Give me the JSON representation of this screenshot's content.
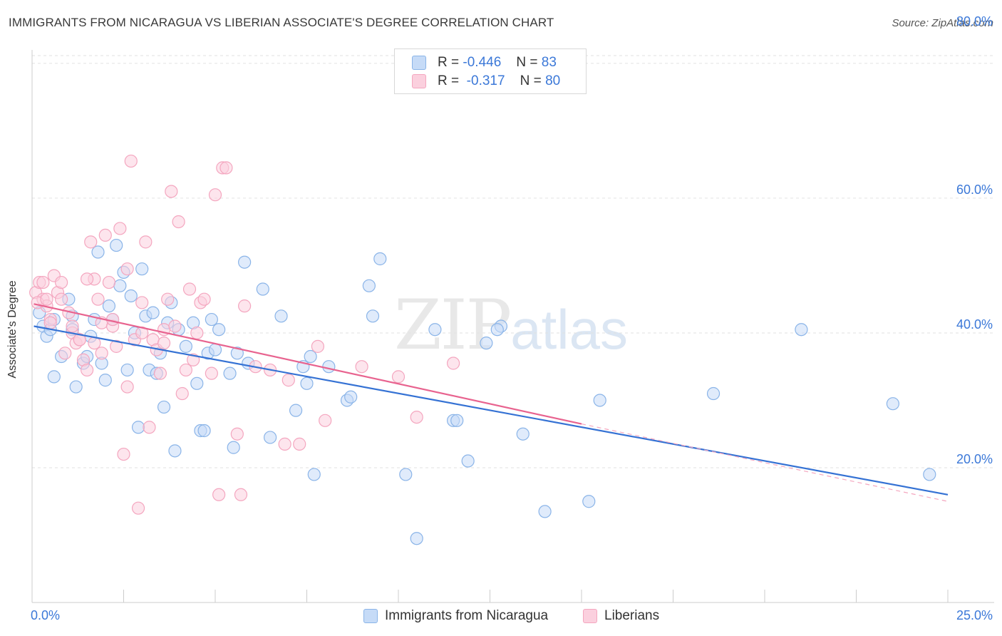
{
  "title": "IMMIGRANTS FROM NICARAGUA VS LIBERIAN ASSOCIATE'S DEGREE CORRELATION CHART",
  "source": "Source: ZipAtlas.com",
  "watermark": {
    "zip": "ZIP",
    "atlas": "atlas"
  },
  "legend": {
    "rows": [
      {
        "r_label": "R =",
        "r_value": "-0.446",
        "n_label": "N =",
        "n_value": "83"
      },
      {
        "r_label": "R =",
        "r_value": "-0.317",
        "n_label": "N =",
        "n_value": "80"
      }
    ]
  },
  "chart_data": {
    "type": "scatter",
    "title": "IMMIGRANTS FROM NICARAGUA VS LIBERIAN ASSOCIATE'S DEGREE CORRELATION CHART",
    "xlabel": "",
    "ylabel": "Associate's Degree",
    "xlim": [
      0,
      25
    ],
    "ylim": [
      0,
      82
    ],
    "x_tick_labels": [
      "0.0%",
      "25.0%"
    ],
    "y_ticks": [
      20,
      40,
      60,
      80
    ],
    "y_tick_labels": [
      "20.0%",
      "40.0%",
      "60.0%",
      "80.0%"
    ],
    "grid": true,
    "legend_position": "top-center",
    "series": [
      {
        "name": "Immigrants from Nicaragua",
        "color": "#8ab4e8",
        "line_color": "#3572d4",
        "R": -0.446,
        "N": 83,
        "trend": {
          "x0": 0.05,
          "y0": 41.0,
          "x1": 25.0,
          "y1": 16.0
        },
        "points": [
          [
            0.2,
            43.0
          ],
          [
            0.3,
            41.0
          ],
          [
            0.4,
            39.5
          ],
          [
            0.5,
            40.5
          ],
          [
            0.6,
            42.0
          ],
          [
            0.6,
            33.5
          ],
          [
            0.8,
            36.5
          ],
          [
            1.0,
            45.0
          ],
          [
            1.1,
            40.5
          ],
          [
            1.1,
            42.5
          ],
          [
            1.2,
            32.0
          ],
          [
            1.4,
            35.5
          ],
          [
            1.5,
            36.5
          ],
          [
            1.6,
            39.5
          ],
          [
            1.7,
            42.0
          ],
          [
            1.8,
            52.0
          ],
          [
            1.9,
            35.5
          ],
          [
            2.0,
            33.0
          ],
          [
            2.1,
            44.0
          ],
          [
            2.2,
            42.0
          ],
          [
            2.3,
            53.0
          ],
          [
            2.4,
            47.0
          ],
          [
            2.5,
            49.0
          ],
          [
            2.6,
            34.5
          ],
          [
            2.7,
            45.5
          ],
          [
            2.8,
            40.0
          ],
          [
            2.9,
            26.0
          ],
          [
            3.0,
            49.5
          ],
          [
            3.1,
            42.5
          ],
          [
            3.2,
            34.5
          ],
          [
            3.3,
            43.0
          ],
          [
            3.4,
            34.0
          ],
          [
            3.5,
            37.0
          ],
          [
            3.6,
            29.0
          ],
          [
            3.7,
            41.5
          ],
          [
            3.8,
            44.5
          ],
          [
            3.9,
            22.5
          ],
          [
            4.0,
            40.5
          ],
          [
            4.2,
            38.0
          ],
          [
            4.4,
            41.5
          ],
          [
            4.5,
            32.5
          ],
          [
            4.6,
            25.5
          ],
          [
            4.7,
            25.5
          ],
          [
            4.8,
            37.0
          ],
          [
            4.9,
            42.0
          ],
          [
            5.0,
            37.5
          ],
          [
            5.1,
            40.5
          ],
          [
            5.4,
            34.0
          ],
          [
            5.5,
            23.0
          ],
          [
            5.6,
            37.0
          ],
          [
            5.8,
            50.5
          ],
          [
            5.9,
            35.5
          ],
          [
            6.3,
            46.5
          ],
          [
            6.5,
            24.5
          ],
          [
            6.8,
            42.5
          ],
          [
            7.2,
            28.5
          ],
          [
            7.4,
            35.0
          ],
          [
            7.5,
            32.5
          ],
          [
            7.6,
            36.5
          ],
          [
            7.7,
            19.0
          ],
          [
            8.1,
            35.0
          ],
          [
            8.6,
            30.0
          ],
          [
            8.7,
            30.5
          ],
          [
            9.2,
            47.0
          ],
          [
            9.3,
            42.5
          ],
          [
            9.5,
            51.0
          ],
          [
            10.2,
            19.0
          ],
          [
            10.5,
            9.5
          ],
          [
            11.0,
            40.5
          ],
          [
            11.5,
            27.0
          ],
          [
            11.6,
            27.0
          ],
          [
            11.9,
            21.0
          ],
          [
            12.4,
            38.5
          ],
          [
            12.8,
            41.0
          ],
          [
            13.4,
            25.0
          ],
          [
            14.0,
            13.5
          ],
          [
            15.2,
            15.0
          ],
          [
            15.5,
            30.0
          ],
          [
            18.6,
            31.0
          ],
          [
            21.0,
            40.5
          ],
          [
            23.5,
            29.5
          ],
          [
            24.5,
            19.0
          ],
          [
            12.7,
            40.5
          ]
        ]
      },
      {
        "name": "Liberians",
        "color": "#f4a6bf",
        "line_color": "#e8638f",
        "R": -0.317,
        "N": 80,
        "trend": {
          "x0": 0.05,
          "y0": 44.3,
          "x1": 15.0,
          "y1": 26.5
        },
        "dashed_extension": {
          "x0": 15.0,
          "y0": 26.5,
          "x1": 25.0,
          "y1": 15.0
        },
        "points": [
          [
            0.1,
            46.0
          ],
          [
            0.2,
            47.5
          ],
          [
            0.3,
            45.0
          ],
          [
            0.4,
            44.0
          ],
          [
            0.5,
            42.0
          ],
          [
            0.6,
            48.5
          ],
          [
            0.7,
            46.0
          ],
          [
            0.8,
            45.0
          ],
          [
            0.9,
            37.0
          ],
          [
            1.0,
            43.0
          ],
          [
            1.1,
            40.0
          ],
          [
            1.2,
            38.5
          ],
          [
            1.3,
            39.0
          ],
          [
            1.4,
            36.0
          ],
          [
            1.5,
            34.5
          ],
          [
            1.6,
            53.5
          ],
          [
            1.7,
            48.0
          ],
          [
            1.8,
            45.0
          ],
          [
            1.9,
            41.5
          ],
          [
            2.0,
            54.5
          ],
          [
            2.1,
            47.5
          ],
          [
            2.2,
            41.0
          ],
          [
            2.3,
            38.0
          ],
          [
            2.4,
            55.5
          ],
          [
            2.5,
            22.0
          ],
          [
            2.6,
            32.0
          ],
          [
            2.7,
            65.5
          ],
          [
            2.8,
            39.0
          ],
          [
            2.9,
            14.0
          ],
          [
            3.0,
            44.5
          ],
          [
            3.1,
            53.5
          ],
          [
            3.2,
            26.0
          ],
          [
            3.3,
            39.0
          ],
          [
            3.4,
            37.5
          ],
          [
            3.5,
            34.0
          ],
          [
            3.6,
            40.5
          ],
          [
            3.7,
            45.0
          ],
          [
            3.8,
            61.0
          ],
          [
            3.9,
            41.0
          ],
          [
            4.0,
            56.5
          ],
          [
            4.1,
            31.0
          ],
          [
            4.2,
            34.5
          ],
          [
            4.3,
            46.5
          ],
          [
            4.4,
            36.0
          ],
          [
            4.5,
            40.0
          ],
          [
            4.6,
            44.5
          ],
          [
            4.7,
            45.0
          ],
          [
            4.9,
            34.0
          ],
          [
            5.0,
            60.5
          ],
          [
            5.1,
            16.0
          ],
          [
            5.2,
            64.5
          ],
          [
            5.3,
            64.5
          ],
          [
            5.6,
            25.0
          ],
          [
            5.7,
            16.0
          ],
          [
            5.8,
            44.0
          ],
          [
            6.1,
            35.0
          ],
          [
            6.5,
            34.5
          ],
          [
            6.9,
            23.5
          ],
          [
            7.0,
            33.0
          ],
          [
            7.3,
            23.5
          ],
          [
            7.8,
            38.0
          ],
          [
            8.0,
            27.0
          ],
          [
            9.0,
            35.0
          ],
          [
            10.0,
            33.5
          ],
          [
            10.5,
            27.5
          ],
          [
            11.5,
            35.5
          ],
          [
            0.3,
            47.5
          ],
          [
            0.5,
            41.5
          ],
          [
            0.8,
            47.5
          ],
          [
            1.1,
            41.0
          ],
          [
            1.3,
            39.0
          ],
          [
            1.5,
            48.0
          ],
          [
            1.7,
            38.5
          ],
          [
            1.9,
            37.0
          ],
          [
            2.2,
            42.0
          ],
          [
            2.6,
            49.5
          ],
          [
            3.0,
            40.0
          ],
          [
            3.6,
            38.5
          ],
          [
            0.15,
            44.5
          ],
          [
            0.4,
            45.0
          ]
        ]
      }
    ]
  }
}
